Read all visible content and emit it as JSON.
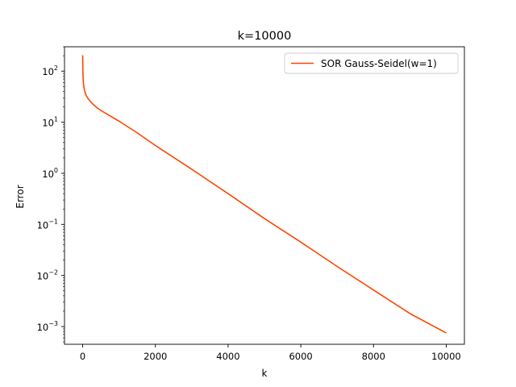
{
  "chart_data": {
    "type": "line",
    "title": "k=10000",
    "xlabel": "k",
    "ylabel": "Error",
    "x_scale": "linear",
    "y_scale": "log",
    "xlim": [
      -500,
      10500
    ],
    "ylim": [
      0.00045,
      300
    ],
    "x_ticks": [
      {
        "value": 0,
        "label": "0"
      },
      {
        "value": 2000,
        "label": "2000"
      },
      {
        "value": 4000,
        "label": "4000"
      },
      {
        "value": 6000,
        "label": "6000"
      },
      {
        "value": 8000,
        "label": "8000"
      },
      {
        "value": 10000,
        "label": "10000"
      }
    ],
    "y_ticks": [
      {
        "value": 100,
        "base": "10",
        "exp": "2"
      },
      {
        "value": 10,
        "base": "10",
        "exp": "1"
      },
      {
        "value": 1,
        "base": "10",
        "exp": "0"
      },
      {
        "value": 0.1,
        "base": "10",
        "exp": "−1"
      },
      {
        "value": 0.01,
        "base": "10",
        "exp": "−2"
      },
      {
        "value": 0.001,
        "base": "10",
        "exp": "−3"
      }
    ],
    "grid": false,
    "legend_position": "top-right",
    "series": [
      {
        "name": "SOR Gauss-Seidel(w=1)",
        "color": "#ff4500",
        "x": [
          0,
          5,
          10,
          20,
          30,
          50,
          80,
          100,
          150,
          200,
          300,
          400,
          500,
          700,
          1000,
          1500,
          2000,
          3000,
          4000,
          5000,
          6000,
          7000,
          8000,
          9000,
          10000
        ],
        "y": [
          205,
          110,
          80,
          60,
          50,
          42,
          36,
          33,
          29,
          26,
          22,
          19,
          17,
          14,
          10.5,
          6.2,
          3.5,
          1.2,
          0.4,
          0.13,
          0.045,
          0.015,
          0.0052,
          0.0018,
          0.00075
        ]
      }
    ]
  }
}
